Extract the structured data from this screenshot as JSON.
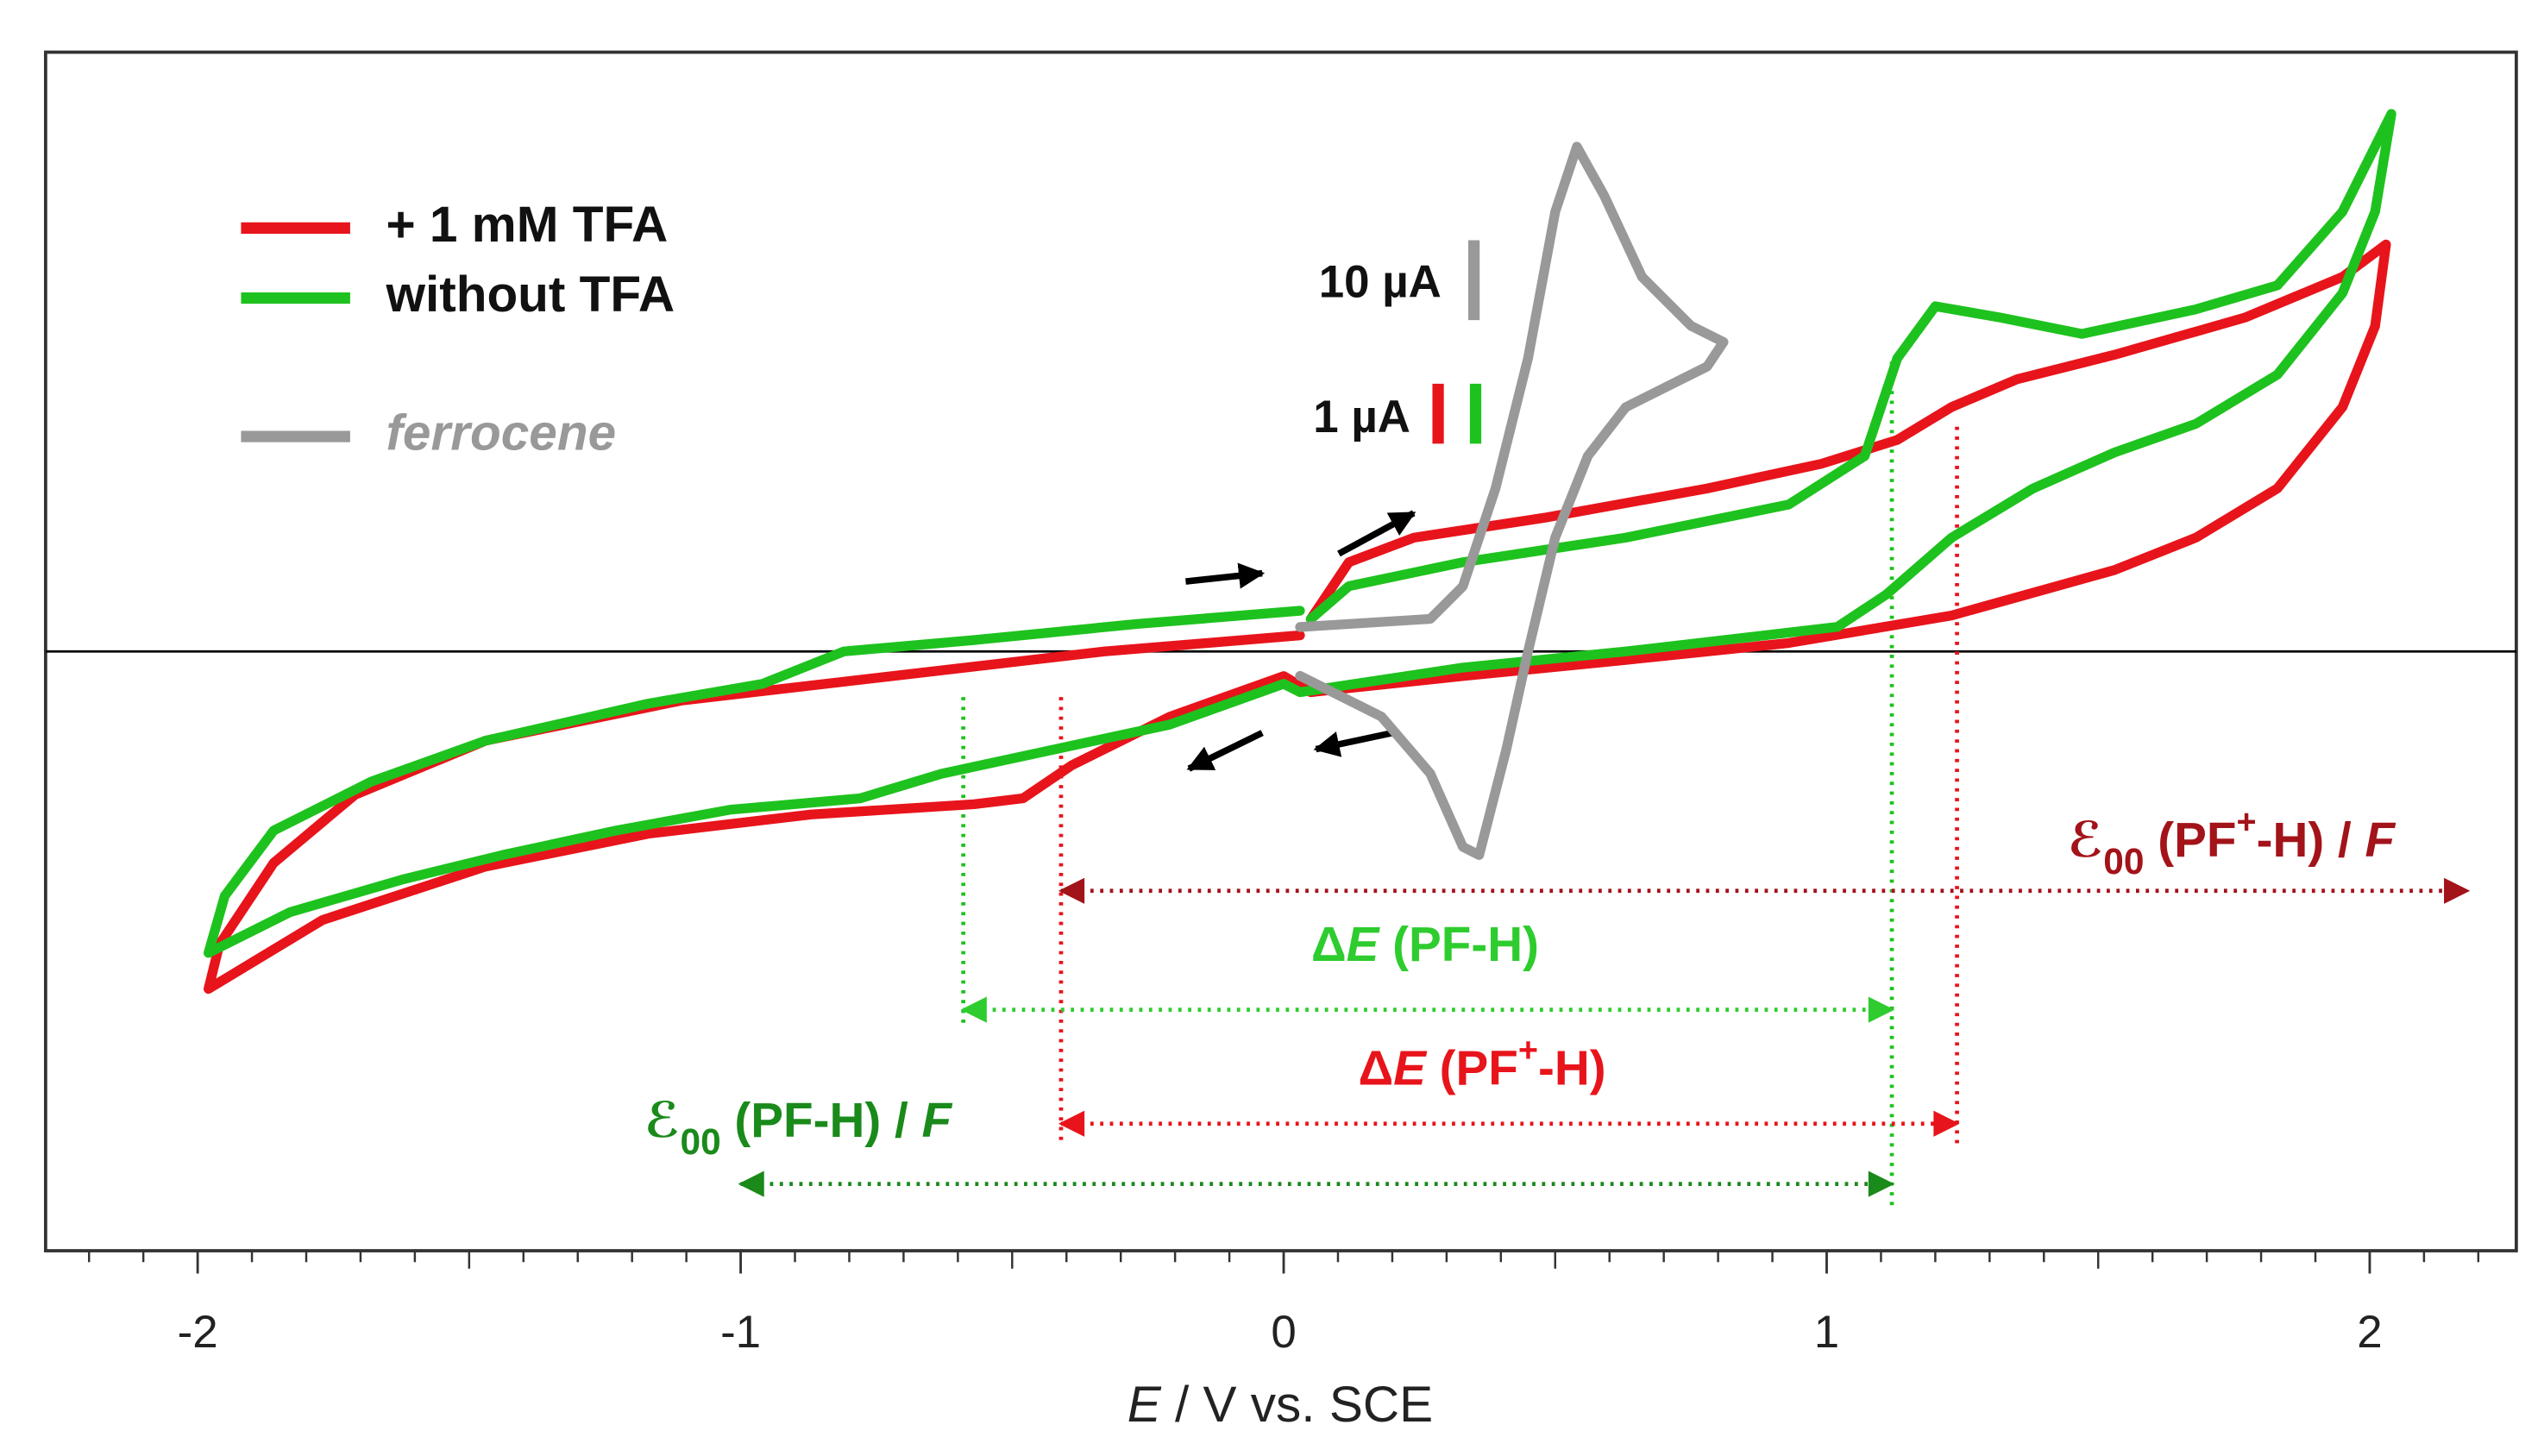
{
  "chart_data": {
    "type": "line",
    "xlabel_parts": [
      {
        "text": "E",
        "italic": true
      },
      {
        "text": " / V vs. SCE"
      }
    ],
    "xlim": [
      -2.28,
      2.27
    ],
    "ylim": [
      -10,
      10
    ],
    "y2lim": [
      -75.1,
      75.1
    ],
    "xticks": [
      -2,
      -1,
      0,
      1,
      2
    ],
    "xminorticks": [
      -2.2,
      -2.1,
      -1.9,
      -1.8,
      -1.7,
      -1.6,
      -1.5,
      -1.4,
      -1.3,
      -1.2,
      -1.1,
      -0.9,
      -0.8,
      -0.7,
      -0.6,
      -0.5,
      -0.4,
      -0.3,
      -0.2,
      -0.1,
      0.1,
      0.2,
      0.3,
      0.4,
      0.5,
      0.6,
      0.7,
      0.8,
      0.9,
      1.1,
      1.2,
      1.3,
      1.4,
      1.5,
      1.6,
      1.7,
      1.8,
      1.9,
      2.1,
      2.2
    ],
    "series": [
      {
        "name": "+ 1 mM TFA",
        "color": "#e8141b",
        "x": [
          0.05,
          0.12,
          0.24,
          0.48,
          0.78,
          0.99,
          1.13,
          1.23,
          1.35,
          1.53,
          1.77,
          1.95,
          2.03,
          2.01,
          1.95,
          1.83,
          1.68,
          1.53,
          1.23,
          0.93,
          0.63,
          0.33,
          0.05,
          0.0,
          -0.21,
          -0.39,
          -0.48,
          -0.57,
          -0.87,
          -1.17,
          -1.47,
          -1.77,
          -1.98,
          -1.96,
          -1.86,
          -1.71,
          -1.47,
          -1.11,
          -0.72,
          -0.33,
          0.03
        ],
        "values": [
          0.54,
          1.49,
          1.9,
          2.23,
          2.72,
          3.13,
          3.53,
          4.08,
          4.54,
          4.95,
          5.57,
          6.25,
          6.79,
          5.43,
          4.08,
          2.72,
          1.9,
          1.36,
          0.6,
          0.14,
          -0.14,
          -0.41,
          -0.68,
          -0.41,
          -1.09,
          -1.9,
          -2.45,
          -2.55,
          -2.72,
          -3.04,
          -3.59,
          -4.48,
          -5.63,
          -4.89,
          -3.53,
          -2.39,
          -1.49,
          -0.82,
          -0.41,
          0.0,
          0.27
        ]
      },
      {
        "name": "without TFA",
        "color": "#1ec21e",
        "x": [
          0.05,
          0.12,
          0.33,
          0.63,
          0.93,
          1.07,
          1.13,
          1.2,
          1.32,
          1.47,
          1.68,
          1.83,
          1.95,
          2.04,
          2.01,
          1.95,
          1.83,
          1.68,
          1.53,
          1.38,
          1.23,
          1.11,
          1.02,
          0.63,
          0.33,
          0.03,
          0.0,
          -0.21,
          -0.42,
          -0.63,
          -0.78,
          -1.02,
          -1.23,
          -1.44,
          -1.62,
          -1.83,
          -1.98,
          -1.95,
          -1.86,
          -1.68,
          -1.47,
          -1.17,
          -0.96,
          -0.81,
          -0.57,
          -0.27,
          0.03
        ],
        "values": [
          0.54,
          1.09,
          1.49,
          1.9,
          2.45,
          3.26,
          4.89,
          5.76,
          5.57,
          5.3,
          5.71,
          6.11,
          7.34,
          8.97,
          7.34,
          5.98,
          4.62,
          3.8,
          3.32,
          2.72,
          1.9,
          0.95,
          0.41,
          0.0,
          -0.27,
          -0.68,
          -0.54,
          -1.22,
          -1.63,
          -2.04,
          -2.45,
          -2.64,
          -2.99,
          -3.4,
          -3.8,
          -4.35,
          -5.03,
          -4.08,
          -2.99,
          -2.17,
          -1.49,
          -0.87,
          -0.54,
          0.0,
          0.19,
          0.46,
          0.68
        ]
      },
      {
        "name": "ferrocene",
        "color": "#999999",
        "axis": "y2",
        "x": [
          0.03,
          0.27,
          0.33,
          0.39,
          0.45,
          0.5,
          0.54,
          0.59,
          0.66,
          0.75,
          0.81,
          0.78,
          0.63,
          0.56,
          0.5,
          0.45,
          0.41,
          0.36,
          0.33,
          0.27,
          0.18,
          0.03
        ],
        "values": [
          3.06,
          4.08,
          8.16,
          20.41,
          36.73,
          55.1,
          63.27,
          57.14,
          46.94,
          40.82,
          38.78,
          35.71,
          30.61,
          24.49,
          14.29,
          0.0,
          -12.24,
          -25.51,
          -24.49,
          -15.31,
          -8.16,
          -3.06
        ]
      }
    ],
    "scale_bars": [
      {
        "label": "10 µA",
        "value": 10,
        "axis": "y2",
        "colors": [
          "#999999"
        ]
      },
      {
        "label": "1 µA",
        "value": 1,
        "axis": "y",
        "colors": [
          "#e8141b",
          "#1ec21e"
        ]
      }
    ],
    "guides": [
      {
        "x": -0.59,
        "color": "#1ec21e"
      },
      {
        "x": 1.12,
        "color": "#1ec21e"
      },
      {
        "x": -0.41,
        "color": "#e8141b"
      },
      {
        "x": 1.24,
        "color": "#e8141b"
      }
    ],
    "intervals": [
      {
        "from": -0.41,
        "to": 2.18,
        "color": "#a3131a",
        "label_parts": [
          {
            "text": "ℰ",
            "italic": true
          },
          {
            "text": "00",
            "sub": true
          },
          {
            "text": " (PF"
          },
          {
            "text": "+",
            "sup": true
          },
          {
            "text": "-H) / "
          },
          {
            "text": "F",
            "italic": true
          }
        ]
      },
      {
        "from": -0.59,
        "to": 1.12,
        "color": "#2ecc2e",
        "label_parts": [
          {
            "text": "Δ"
          },
          {
            "text": "E",
            "italic": true
          },
          {
            "text": " (PF-H)"
          }
        ]
      },
      {
        "from": -0.41,
        "to": 1.24,
        "color": "#e8141b",
        "label_parts": [
          {
            "text": "Δ"
          },
          {
            "text": "E",
            "italic": true
          },
          {
            "text": " (PF"
          },
          {
            "text": "+",
            "sup": true
          },
          {
            "text": "-H)"
          }
        ]
      },
      {
        "from": -1.0,
        "to": 1.12,
        "color": "#1a8a1a",
        "label_parts": [
          {
            "text": "ℰ",
            "italic": true
          },
          {
            "text": "00",
            "sub": true
          },
          {
            "text": " (PF-H) / "
          },
          {
            "text": "F",
            "italic": true
          }
        ]
      }
    ]
  }
}
